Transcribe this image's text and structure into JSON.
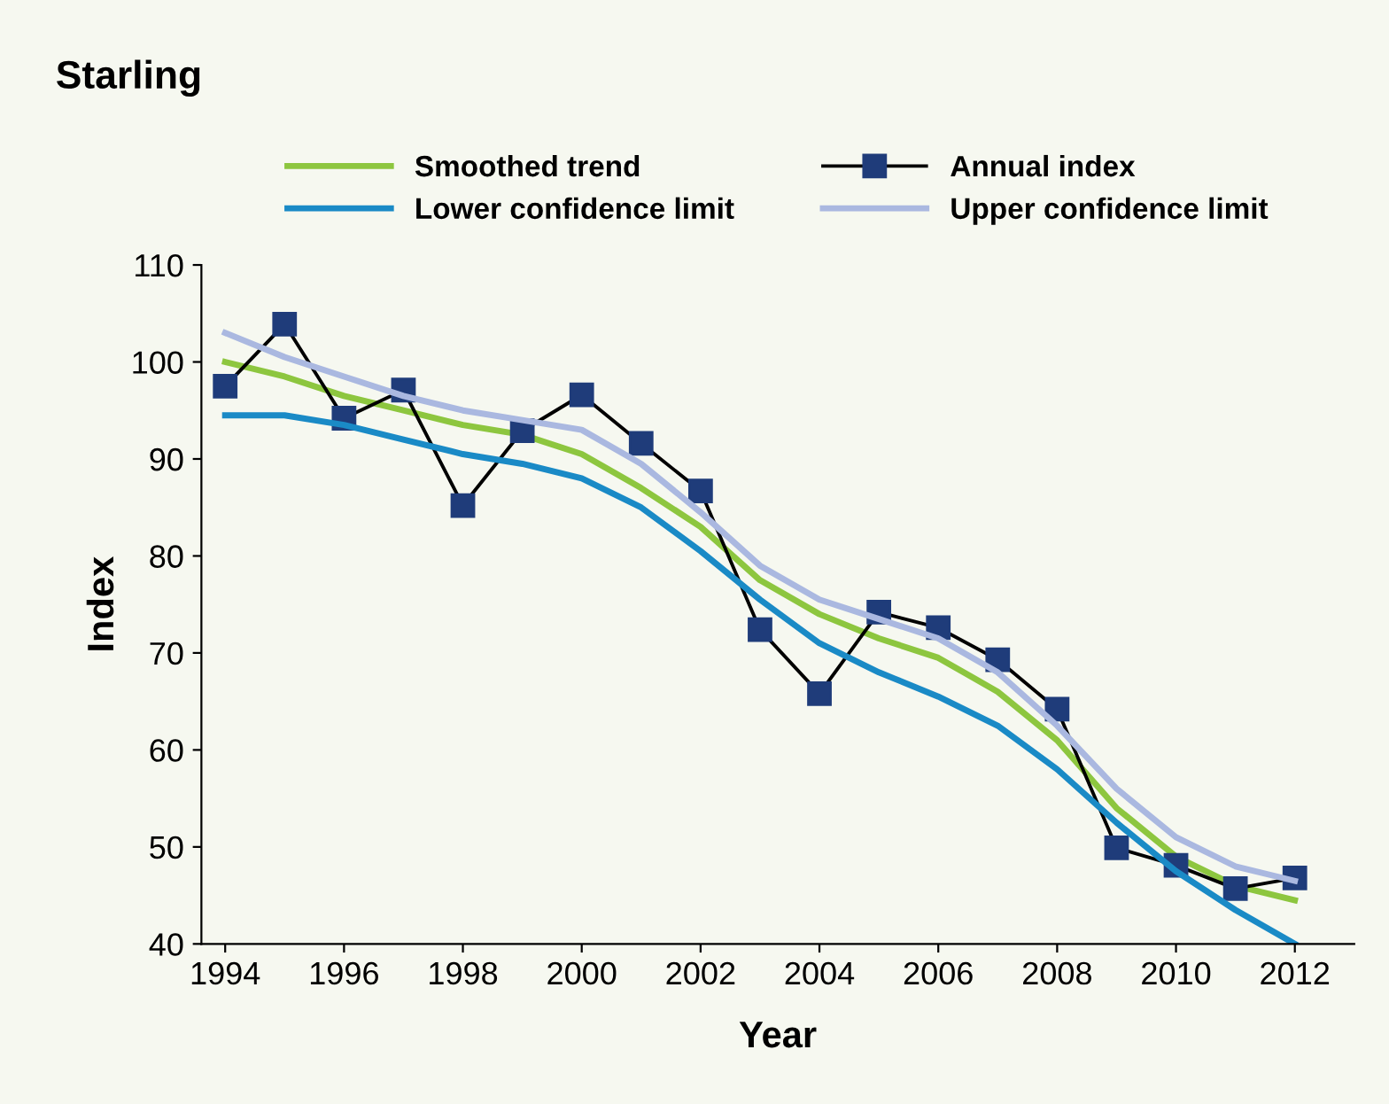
{
  "chart_data": {
    "type": "line",
    "title": "Starling",
    "xlabel": "Year",
    "ylabel": "Index",
    "x": [
      1994,
      1995,
      1996,
      1997,
      1998,
      1999,
      2000,
      2001,
      2002,
      2003,
      2004,
      2005,
      2006,
      2007,
      2008,
      2009,
      2010,
      2011,
      2012
    ],
    "series": [
      {
        "name": "Smoothed trend",
        "color": "#8dc63f",
        "marker": "none",
        "values": [
          100,
          98.5,
          96.5,
          95,
          93.5,
          92.5,
          90.5,
          87,
          83,
          77.5,
          74,
          71.5,
          69.5,
          66,
          61,
          54,
          49,
          46,
          44.5
        ]
      },
      {
        "name": "Annual index",
        "color": "#1f3c7a",
        "marker": "square",
        "values": [
          97.5,
          103.9,
          94.2,
          97.1,
          85.2,
          92.9,
          96.6,
          91.6,
          86.7,
          72.4,
          65.8,
          74.2,
          72.6,
          69.3,
          64.2,
          49.9,
          48.1,
          45.7,
          46.8
        ]
      },
      {
        "name": "Lower confidence limit",
        "color": "#1a8ac6",
        "marker": "none",
        "values": [
          94.5,
          94.5,
          93.5,
          92,
          90.5,
          89.5,
          88,
          85,
          80.5,
          75.5,
          71,
          68,
          65.5,
          62.5,
          58,
          52.5,
          47.5,
          43.5,
          40
        ]
      },
      {
        "name": "Upper confidence limit",
        "color": "#aab8e0",
        "marker": "none",
        "values": [
          103,
          100.5,
          98.5,
          96.5,
          95,
          94,
          93,
          89.5,
          84.5,
          79,
          75.5,
          73.5,
          71.5,
          68,
          62.5,
          56,
          51,
          48,
          46.5
        ]
      }
    ],
    "xlim": [
      1993.6,
      2013
    ],
    "xticks": [
      1994,
      1996,
      1998,
      2000,
      2002,
      2004,
      2006,
      2008,
      2010,
      2012
    ],
    "ylim": [
      40,
      110
    ],
    "yticks": [
      40,
      50,
      60,
      70,
      80,
      90,
      100,
      110
    ],
    "grid": false,
    "legend": "top",
    "line_style": "solid"
  }
}
